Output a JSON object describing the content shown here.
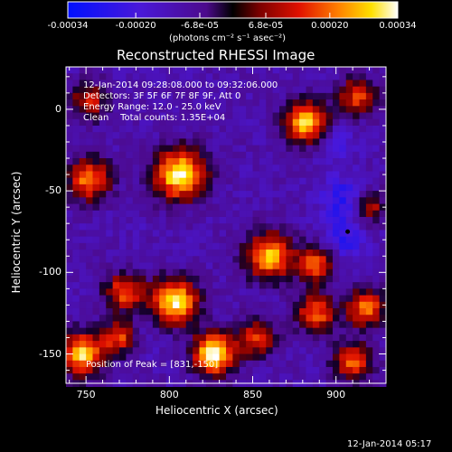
{
  "colorbar": {
    "tick_labels": [
      "-0.00034",
      "-0.00020",
      "-6.8e-05",
      "6.8e-05",
      "0.00020",
      "0.00034"
    ],
    "tick_values": [
      -0.00034,
      -0.0002,
      -6.8e-05,
      6.8e-05,
      0.0002,
      0.00034
    ],
    "range": [
      -0.00034,
      0.00034
    ],
    "units_label": "(photons cm⁻² s⁻¹ asec⁻²)"
  },
  "chart_data": {
    "type": "heatmap",
    "title": "Reconstructed RHESSI Image",
    "xlabel": "Heliocentric X (arcsec)",
    "ylabel": "Heliocentric Y (arcsec)",
    "xlim": [
      738,
      930
    ],
    "ylim": [
      -168,
      26
    ],
    "x_ticks": [
      750,
      800,
      850,
      900
    ],
    "y_ticks": [
      0,
      -50,
      -100,
      -150
    ],
    "annotations": [
      "12-Jan-2014 09:28:08.000 to 09:32:06.000",
      "Detectors: 3F 5F 6F 7F 8F 9F, Att 0",
      "Energy Range: 12.0 - 25.0 keV",
      "Clean    Total counts: 1.35E+04"
    ],
    "peak_label": "Position of Peak = [831,-150]",
    "marker": {
      "x": 907,
      "y": -75
    },
    "sources": [
      {
        "x": 806,
        "y": -40,
        "peak": 0.00033,
        "r": 11
      },
      {
        "x": 882,
        "y": -8,
        "peak": 0.00028,
        "r": 9
      },
      {
        "x": 913,
        "y": 8,
        "peak": 0.00016,
        "r": 8
      },
      {
        "x": 752,
        "y": -43,
        "peak": 0.00022,
        "r": 9
      },
      {
        "x": 752,
        "y": 5,
        "peak": 0.00012,
        "r": 8
      },
      {
        "x": 860,
        "y": -90,
        "peak": 0.00026,
        "r": 10
      },
      {
        "x": 888,
        "y": -95,
        "peak": 0.00018,
        "r": 8
      },
      {
        "x": 918,
        "y": -122,
        "peak": 0.00022,
        "r": 8
      },
      {
        "x": 888,
        "y": -125,
        "peak": 0.0002,
        "r": 8
      },
      {
        "x": 803,
        "y": -118,
        "peak": 0.00032,
        "r": 10
      },
      {
        "x": 773,
        "y": -112,
        "peak": 0.00019,
        "r": 8
      },
      {
        "x": 827,
        "y": -150,
        "peak": 0.00034,
        "r": 9
      },
      {
        "x": 748,
        "y": -150,
        "peak": 0.0003,
        "r": 9
      },
      {
        "x": 770,
        "y": -140,
        "peak": 0.00016,
        "r": 7
      },
      {
        "x": 910,
        "y": -155,
        "peak": 0.0002,
        "r": 8
      },
      {
        "x": 853,
        "y": -140,
        "peak": 0.00015,
        "r": 8
      },
      {
        "x": 920,
        "y": -60,
        "peak": 0.00012,
        "r": 7
      }
    ],
    "negative_regions": [
      {
        "x": 905,
        "y": -55,
        "depth": -0.00026,
        "r": 10
      },
      {
        "x": 900,
        "y": -20,
        "depth": -0.0002,
        "r": 8
      },
      {
        "x": 905,
        "y": -80,
        "depth": -0.00024,
        "r": 9
      },
      {
        "x": 783,
        "y": -70,
        "depth": -0.00012,
        "r": 8
      },
      {
        "x": 790,
        "y": -140,
        "depth": -0.00014,
        "r": 8
      },
      {
        "x": 838,
        "y": -20,
        "depth": -0.0001,
        "r": 8
      }
    ]
  },
  "footer": {
    "date": "12-Jan-2014 05:17"
  }
}
